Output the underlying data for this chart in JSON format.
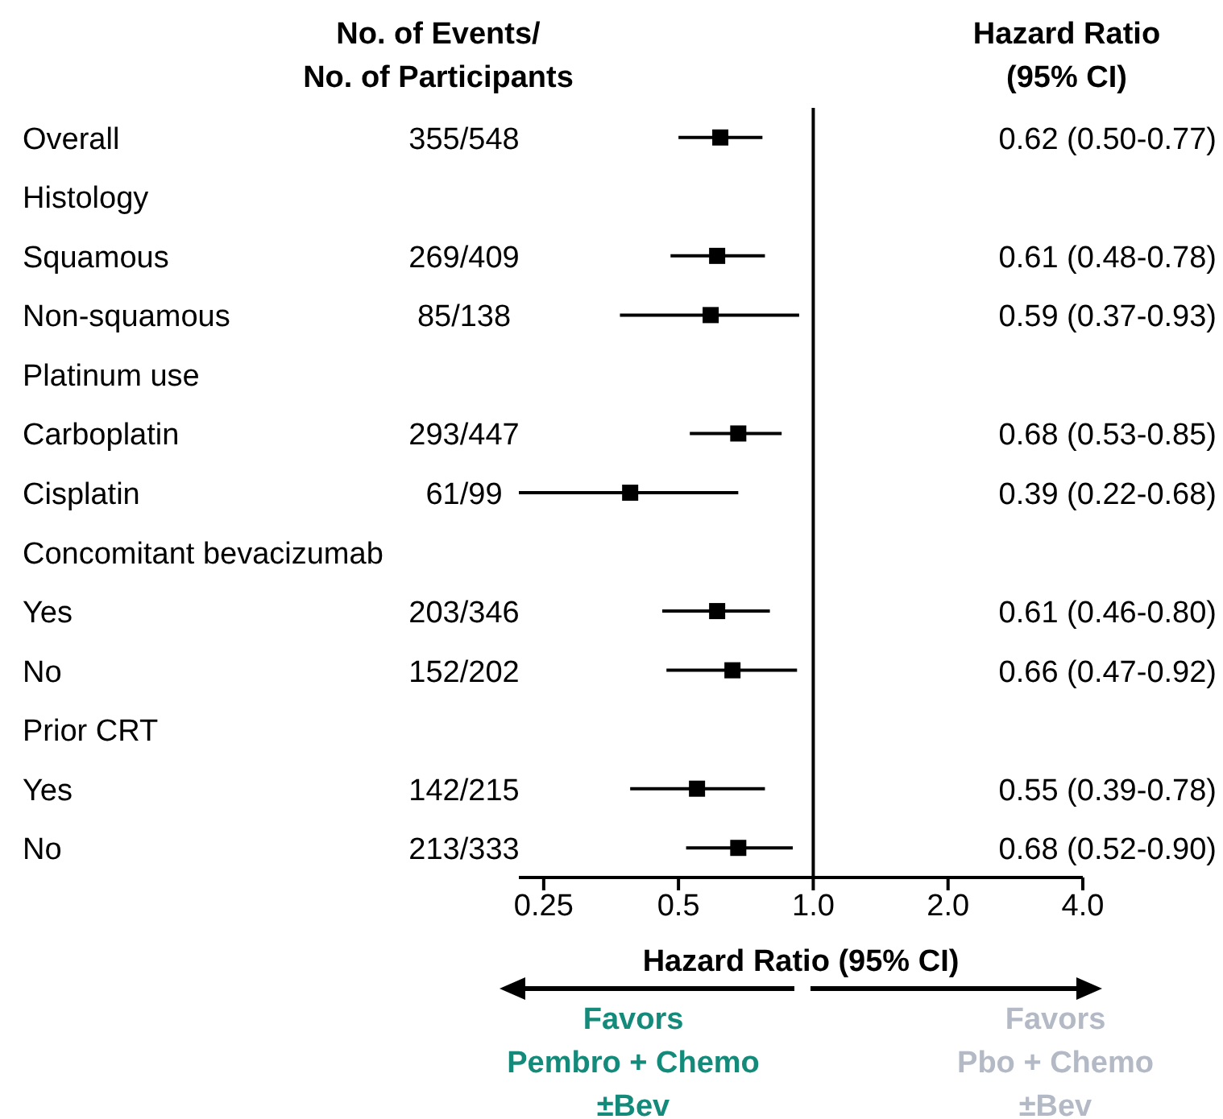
{
  "chart_data": {
    "type": "scatter",
    "orientation": "horizontal",
    "categories": [
      "Overall",
      "Histology",
      "Squamous",
      "Non-squamous",
      "Platinum use",
      "Carboplatin",
      "Cisplatin",
      "Concomitant bevacizumab",
      "Yes",
      "No",
      "Prior CRT",
      "Yes",
      "No"
    ],
    "values": [
      0.62,
      null,
      0.61,
      0.59,
      null,
      0.68,
      0.39,
      null,
      0.61,
      0.66,
      null,
      0.55,
      0.68
    ],
    "errors": [
      [
        0.5,
        0.77
      ],
      null,
      [
        0.48,
        0.78
      ],
      [
        0.37,
        0.93
      ],
      null,
      [
        0.53,
        0.85
      ],
      [
        0.22,
        0.68
      ],
      null,
      [
        0.46,
        0.8
      ],
      [
        0.47,
        0.92
      ],
      null,
      [
        0.39,
        0.78
      ],
      [
        0.52,
        0.9
      ]
    ],
    "value_labels": [
      "0.62 (0.50-0.77)",
      null,
      "0.61 (0.48-0.78)",
      "0.59 (0.37-0.93)",
      null,
      "0.68 (0.53-0.85)",
      "0.39 (0.22-0.68)",
      null,
      "0.61 (0.46-0.80)",
      "0.66 (0.47-0.92)",
      null,
      "0.55 (0.39-0.78)",
      "0.68 (0.52-0.90)"
    ],
    "color": "#000000",
    "marker": "square",
    "log": "x",
    "xlim": [
      0.22,
      4
    ],
    "xticks": [
      {
        "value": 0.25,
        "label": "0.25"
      },
      {
        "value": 0.5,
        "label": "0.5"
      },
      {
        "value": 1,
        "label": "1.0"
      },
      {
        "value": 2,
        "label": "2.0"
      },
      {
        "value": 4,
        "label": "4.0"
      }
    ],
    "xlabel": "Hazard Ratio (95% CI)",
    "ref_lines": [
      {
        "axis": "x",
        "value": 1,
        "label": null
      }
    ],
    "annotations": [
      "No. of  Events/\nNo. of Participants",
      "Hazard Ratio\n(95% CI)",
      "Favors\nPembro + Chemo\n±Bev",
      "Favors\nPbo + Chemo\n±Bev",
      "355/548",
      "269/409",
      "85/138",
      "293/447",
      "61/99",
      "203/346",
      "152/202",
      "142/215",
      "213/333"
    ]
  }
}
